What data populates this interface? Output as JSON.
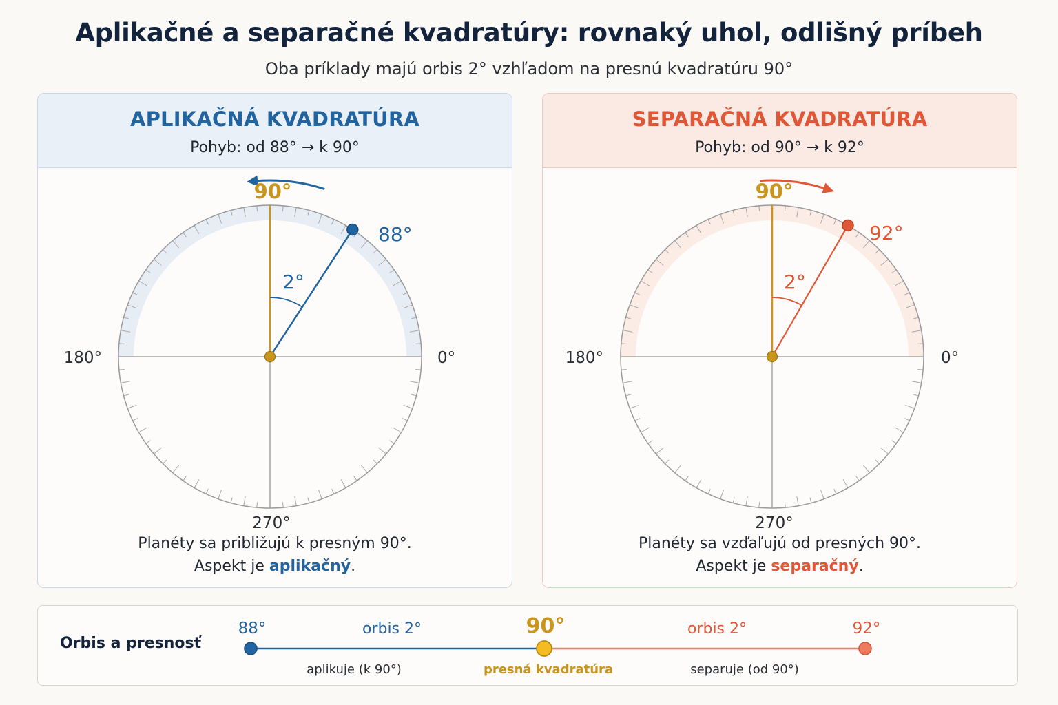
{
  "header": {
    "title": "Aplikačné a separačné kvadratúry: rovnaký uhol, odlišný príbeh",
    "subtitle": "Oba príklady majú orbis 2° vzhľadom na presnú kvadratúru 90°"
  },
  "colors": {
    "applying": "#2264a0",
    "separating": "#e05738",
    "exact": "#c9951c",
    "circle": "#9a9a9a"
  },
  "left_panel": {
    "title": "APLIKAČNÁ KVADRATÚRA",
    "motion": "Pohyb: od 88° → k 90°",
    "planet_angle": 88,
    "orbis": 2,
    "direction": "counterclockwise",
    "labels": {
      "top": "90°",
      "left": "180°",
      "right": "0°",
      "bottom": "270°",
      "planet": "88°",
      "orbis": "2°"
    },
    "caption_line1": "Planéty sa približujú k presným 90°.",
    "caption_line2_prefix": "Aspekt je ",
    "caption_line2_keyword": "aplikačný",
    "caption_line2_suffix": "."
  },
  "right_panel": {
    "title": "SEPARAČNÁ KVADRATÚRA",
    "motion": "Pohyb: od 90° → k 92°",
    "planet_angle": 92,
    "orbis": 2,
    "direction": "clockwise",
    "labels": {
      "top": "90°",
      "left": "180°",
      "right": "0°",
      "bottom": "270°",
      "planet": "92°",
      "orbis": "2°"
    },
    "caption_line1": "Planéty sa vzďaľujú od presných 90°.",
    "caption_line2_prefix": "Aspekt je ",
    "caption_line2_keyword": "separačný",
    "caption_line2_suffix": "."
  },
  "orbis_scale": {
    "title": "Orbis a presnosť",
    "left_value": "88°",
    "center_value": "90°",
    "right_value": "92°",
    "left_orbis": "orbis 2°",
    "right_orbis": "orbis 2°",
    "left_caption": "aplikuje (k 90°)",
    "center_caption": "presná kvadratúra",
    "right_caption": "separuje (od 90°)"
  }
}
